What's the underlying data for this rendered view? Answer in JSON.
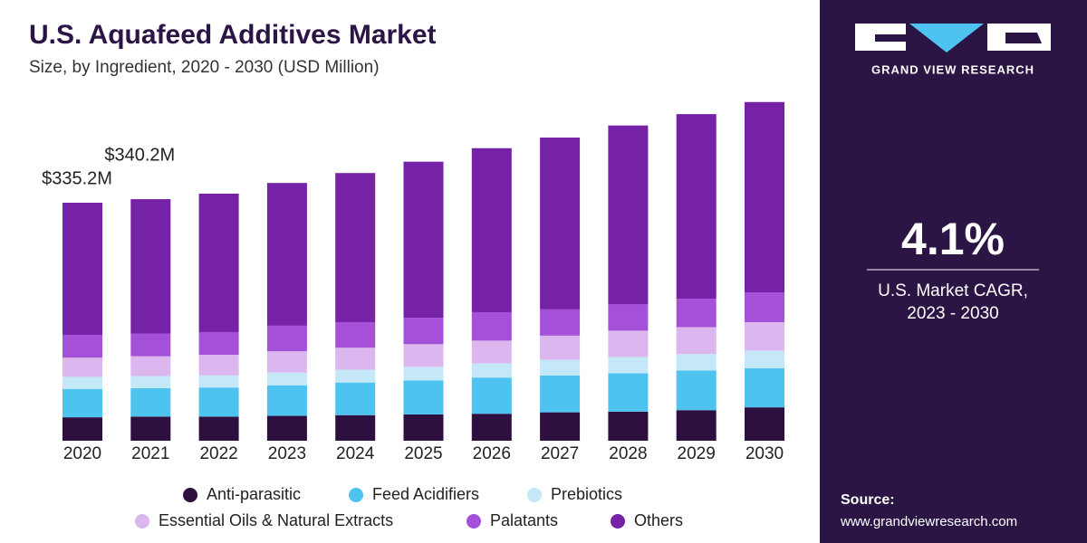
{
  "chart_data": {
    "type": "stacked_bar",
    "title": "U.S. Aquafeed Additives Market",
    "subtitle": "Size, by Ingredient, 2020 - 2030 (USD Million)",
    "categories": [
      "2020",
      "2021",
      "2022",
      "2023",
      "2024",
      "2025",
      "2026",
      "2027",
      "2028",
      "2029",
      "2030"
    ],
    "series": [
      {
        "name": "Anti-parasitic",
        "color": "#2d1040",
        "values": [
          33,
          34,
          34,
          35,
          36,
          37,
          38,
          40,
          41,
          43,
          47
        ]
      },
      {
        "name": "Feed Acidifiers",
        "color": "#4fc3f0",
        "values": [
          40,
          40,
          41,
          43,
          46,
          48,
          51,
          52,
          54,
          56,
          55
        ]
      },
      {
        "name": "Prebiotics",
        "color": "#c4e8f8",
        "values": [
          17,
          17,
          17,
          18,
          18,
          19,
          20,
          22,
          23,
          23,
          25
        ]
      },
      {
        "name": "Essential Oils & Natural Extracts",
        "color": "#dcb6ee",
        "values": [
          27,
          28,
          29,
          30,
          31,
          32,
          32,
          34,
          37,
          38,
          40
        ]
      },
      {
        "name": "Palatants",
        "color": "#a550d8",
        "values": [
          32,
          32,
          32,
          36,
          36,
          37,
          40,
          37,
          37,
          40,
          42
        ]
      },
      {
        "name": "Others",
        "color": "#7622a6",
        "values": [
          186.2,
          189.2,
          195,
          201,
          210,
          220,
          231,
          242,
          252,
          260,
          268
        ]
      }
    ],
    "annotations": [
      {
        "category": "2020",
        "value": 335.2,
        "text": "$335.2M"
      },
      {
        "category": "2021",
        "value": 340.2,
        "text": "$340.2M"
      }
    ]
  },
  "side_panel": {
    "brand": "GRAND VIEW RESEARCH",
    "cagr": "4.1%",
    "cagr_caption": [
      "U.S. Market CAGR,",
      "2023 - 2030"
    ],
    "source_label": "Source:",
    "source_url": "www.grandviewresearch.com"
  }
}
